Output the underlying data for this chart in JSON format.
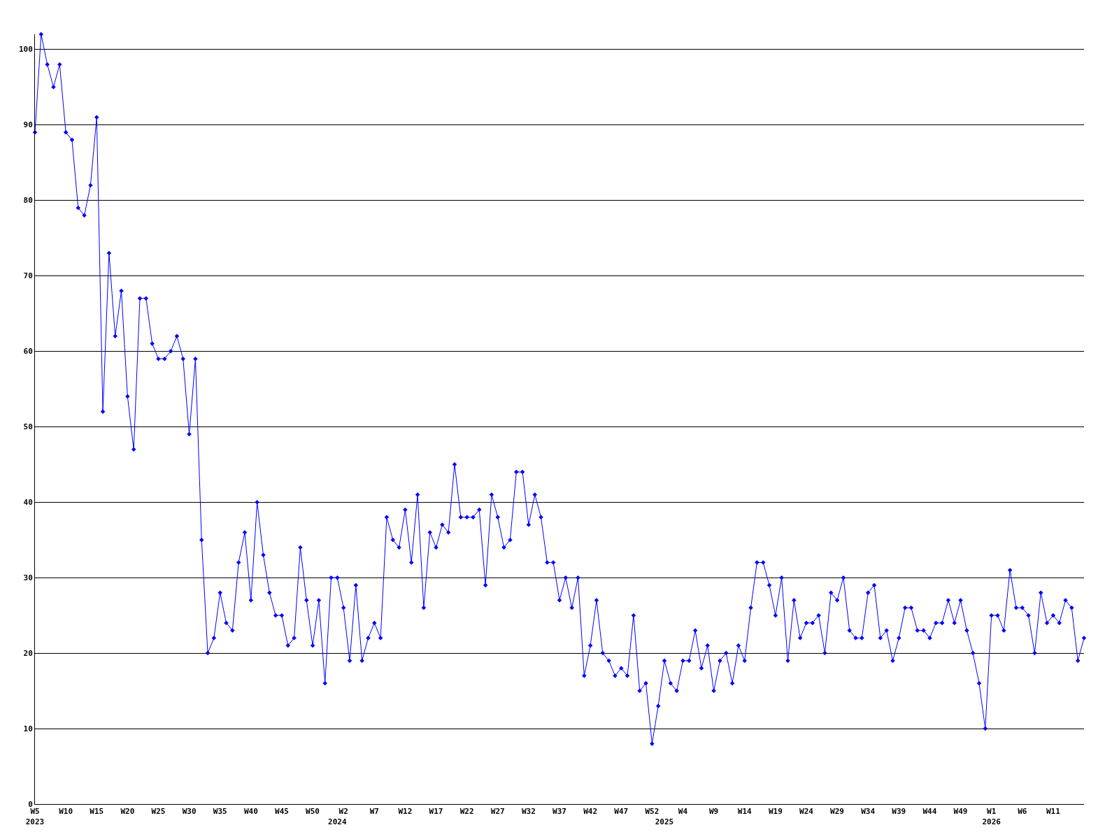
{
  "chart_data": {
    "type": "line",
    "categories": [
      "W5\n2023",
      null,
      null,
      null,
      null,
      "W10",
      null,
      null,
      null,
      null,
      "W15",
      null,
      null,
      null,
      null,
      "W20",
      null,
      null,
      null,
      null,
      "W25",
      null,
      null,
      null,
      null,
      "W30",
      null,
      null,
      null,
      null,
      "W35",
      null,
      null,
      null,
      null,
      "W40",
      null,
      null,
      null,
      null,
      "W45",
      null,
      null,
      null,
      null,
      "W50",
      null,
      null,
      null,
      "\n2024",
      "W2",
      null,
      null,
      null,
      null,
      "W7",
      null,
      null,
      null,
      null,
      "W12",
      null,
      null,
      null,
      null,
      "W17",
      null,
      null,
      null,
      null,
      "W22",
      null,
      null,
      null,
      null,
      "W27",
      null,
      null,
      null,
      null,
      "W32",
      null,
      null,
      null,
      null,
      "W37",
      null,
      null,
      null,
      null,
      "W42",
      null,
      null,
      null,
      null,
      "W47",
      null,
      null,
      null,
      null,
      "W52",
      null,
      "\n2025",
      null,
      null,
      "W4",
      null,
      null,
      null,
      null,
      "W9",
      null,
      null,
      null,
      null,
      "W14",
      null,
      null,
      null,
      null,
      "W19",
      null,
      null,
      null,
      null,
      "W24",
      null,
      null,
      null,
      null,
      "W29",
      null,
      null,
      null,
      null,
      "W34",
      null,
      null,
      null,
      null,
      "W39",
      null,
      null,
      null,
      null,
      "W44",
      null,
      null,
      null,
      null,
      "W49",
      null,
      null,
      null,
      null,
      "W1\n2026",
      null,
      null,
      null,
      null,
      "W6",
      null,
      null,
      null,
      null,
      "W11",
      null,
      null,
      null,
      null,
      null
    ],
    "series": [
      {
        "color": "#0000ff",
        "values": [
          89,
          102,
          98,
          95,
          98,
          89,
          88,
          79,
          78,
          82,
          91,
          52,
          73,
          62,
          68,
          54,
          47,
          67,
          67,
          61,
          59,
          59,
          60,
          62,
          59,
          49,
          59,
          35,
          20,
          22,
          28,
          24,
          23,
          32,
          36,
          27,
          40,
          33,
          28,
          25,
          25,
          21,
          22,
          34,
          27,
          21,
          27,
          16,
          30,
          30,
          26,
          19,
          29,
          19,
          22,
          24,
          22,
          38,
          35,
          34,
          39,
          32,
          41,
          26,
          36,
          34,
          37,
          36,
          45,
          38,
          38,
          38,
          39,
          29,
          41,
          38,
          34,
          35,
          44,
          44,
          37,
          41,
          38,
          32,
          32,
          27,
          30,
          26,
          30,
          17,
          21,
          27,
          20,
          19,
          17,
          18,
          17,
          25,
          15,
          16,
          8,
          13,
          19,
          16,
          15,
          19,
          19,
          23,
          18,
          21,
          15,
          19,
          20,
          16,
          21,
          19,
          26,
          32,
          32,
          29,
          25,
          30,
          19,
          27,
          22,
          24,
          24,
          25,
          20,
          28,
          27,
          30,
          23,
          22,
          22,
          28,
          29,
          22,
          23,
          19,
          22,
          26,
          26,
          23,
          23,
          22,
          24,
          24,
          27,
          24,
          27,
          23,
          20,
          16,
          10,
          25,
          25,
          23,
          31,
          26,
          26,
          25,
          20,
          28,
          24,
          25,
          24,
          27,
          26,
          19,
          22
        ]
      }
    ],
    "ylim": [
      0,
      102
    ],
    "yticks": [
      0,
      10,
      20,
      30,
      40,
      50,
      60,
      70,
      80,
      90,
      100
    ],
    "grid": "y",
    "marker": "diamond",
    "line_style": "solid"
  }
}
